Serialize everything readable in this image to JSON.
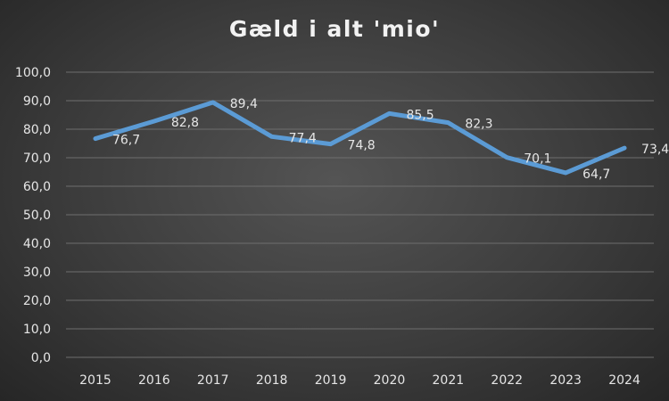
{
  "chart_data": {
    "type": "line",
    "title": "Gæld i alt 'mio'",
    "categories": [
      "2015",
      "2016",
      "2017",
      "2018",
      "2019",
      "2020",
      "2021",
      "2022",
      "2023",
      "2024"
    ],
    "series": [
      {
        "values": [
          76.7,
          82.8,
          89.4,
          77.4,
          74.8,
          85.5,
          82.3,
          70.1,
          64.7,
          73.4
        ],
        "labels": [
          "76,7",
          "82,8",
          "89,4",
          "77,4",
          "74,8",
          "85,5",
          "82,3",
          "70,1",
          "64,7",
          "73,4"
        ],
        "color": "#5b9bd5"
      }
    ],
    "yticks": [
      "0,0",
      "10,0",
      "20,0",
      "30,0",
      "40,0",
      "50,0",
      "60,0",
      "70,0",
      "80,0",
      "90,0",
      "100,0"
    ],
    "ylim": [
      0,
      100
    ],
    "grid": true,
    "legend": "none",
    "gridline_color": "#6e6e6e",
    "background_color": "#404040"
  }
}
